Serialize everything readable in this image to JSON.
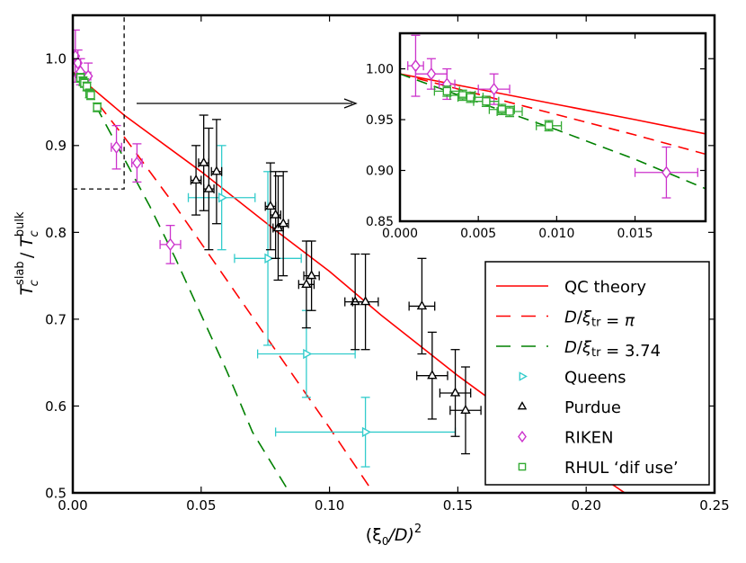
{
  "chart_data": [
    {
      "type": "line",
      "id": "main",
      "xlabel_main": "(ξ",
      "xlabel_sub": "0",
      "xlabel_rest": "/D)",
      "xlabel_sup": "2",
      "ylabel_T": "T",
      "ylabel_sub": "c",
      "ylabel_sup_num": "slab",
      "ylabel_sup_den": "bulk",
      "xlim": [
        0.0,
        0.25
      ],
      "ylim": [
        0.5,
        1.05
      ],
      "xticks": [
        0.0,
        0.05,
        0.1,
        0.15,
        0.2,
        0.25
      ],
      "xtick_labels": [
        "0.00",
        "0.05",
        "0.10",
        "0.15",
        "0.20",
        "0.25"
      ],
      "yticks": [
        0.5,
        0.6,
        0.7,
        0.8,
        0.9,
        1.0
      ],
      "ytick_labels": [
        "0.5",
        "0.6",
        "0.7",
        "0.8",
        "0.9",
        "1.0"
      ],
      "zoom_box": {
        "x": [
          0.0,
          0.02
        ],
        "y": [
          0.85,
          1.05
        ]
      },
      "lines": [
        {
          "name": "QC theory",
          "color": "#ff0000",
          "dash": "none",
          "x": [
            0.0,
            0.02,
            0.05,
            0.08,
            0.1,
            0.12,
            0.15,
            0.18,
            0.2,
            0.225
          ],
          "y": [
            0.985,
            0.935,
            0.87,
            0.8,
            0.755,
            0.705,
            0.635,
            0.57,
            0.53,
            0.48
          ]
        },
        {
          "name": "D/ξtr = π",
          "color": "#ff0000",
          "dash": "14,9",
          "x": [
            0.0,
            0.02,
            0.04,
            0.06,
            0.08,
            0.1,
            0.116
          ],
          "y": [
            0.985,
            0.91,
            0.83,
            0.745,
            0.66,
            0.575,
            0.505
          ]
        },
        {
          "name": "D/ξtr = 3.74",
          "color": "#008000",
          "dash": "14,9",
          "x": [
            0.0,
            0.01,
            0.02,
            0.03,
            0.04,
            0.05,
            0.06,
            0.07,
            0.0845
          ],
          "y": [
            0.985,
            0.94,
            0.885,
            0.83,
            0.77,
            0.705,
            0.64,
            0.57,
            0.5
          ]
        }
      ],
      "series": [
        {
          "name": "Queens",
          "marker": "triangle-right",
          "color": "#33cccc",
          "points": [
            {
              "x": 0.058,
              "y": 0.84,
              "xerr": 0.013,
              "yerr": 0.06
            },
            {
              "x": 0.076,
              "y": 0.77,
              "xerr": 0.013,
              "yerr": 0.1
            },
            {
              "x": 0.091,
              "y": 0.66,
              "xerr": 0.019,
              "yerr": 0.05
            },
            {
              "x": 0.114,
              "y": 0.57,
              "xerr": 0.035,
              "yerr": 0.04
            }
          ]
        },
        {
          "name": "Purdue",
          "marker": "triangle-up",
          "color": "#000000",
          "points": [
            {
              "x": 0.048,
              "y": 0.86,
              "xerr": 0.002,
              "yerr": 0.04
            },
            {
              "x": 0.051,
              "y": 0.88,
              "xerr": 0.002,
              "yerr": 0.055
            },
            {
              "x": 0.053,
              "y": 0.85,
              "xerr": 0.002,
              "yerr": 0.07
            },
            {
              "x": 0.056,
              "y": 0.87,
              "xerr": 0.002,
              "yerr": 0.06
            },
            {
              "x": 0.077,
              "y": 0.83,
              "xerr": 0.002,
              "yerr": 0.05
            },
            {
              "x": 0.079,
              "y": 0.82,
              "xerr": 0.002,
              "yerr": 0.05
            },
            {
              "x": 0.08,
              "y": 0.805,
              "xerr": 0.002,
              "yerr": 0.06
            },
            {
              "x": 0.082,
              "y": 0.81,
              "xerr": 0.002,
              "yerr": 0.06
            },
            {
              "x": 0.091,
              "y": 0.74,
              "xerr": 0.003,
              "yerr": 0.05
            },
            {
              "x": 0.093,
              "y": 0.75,
              "xerr": 0.003,
              "yerr": 0.04
            },
            {
              "x": 0.11,
              "y": 0.72,
              "xerr": 0.004,
              "yerr": 0.055
            },
            {
              "x": 0.114,
              "y": 0.72,
              "xerr": 0.005,
              "yerr": 0.055
            },
            {
              "x": 0.136,
              "y": 0.715,
              "xerr": 0.005,
              "yerr": 0.055
            },
            {
              "x": 0.14,
              "y": 0.635,
              "xerr": 0.006,
              "yerr": 0.05
            },
            {
              "x": 0.149,
              "y": 0.615,
              "xerr": 0.006,
              "yerr": 0.05
            },
            {
              "x": 0.153,
              "y": 0.595,
              "xerr": 0.006,
              "yerr": 0.05
            }
          ]
        },
        {
          "name": "RIKEN",
          "marker": "diamond",
          "color": "#cc33cc",
          "points": [
            {
              "x": 0.001,
              "y": 1.003,
              "xerr": 0.0005,
              "yerr": 0.03
            },
            {
              "x": 0.002,
              "y": 0.995,
              "xerr": 0.001,
              "yerr": 0.015
            },
            {
              "x": 0.003,
              "y": 0.985,
              "xerr": 0.0005,
              "yerr": 0.015
            },
            {
              "x": 0.006,
              "y": 0.98,
              "xerr": 0.001,
              "yerr": 0.015
            },
            {
              "x": 0.017,
              "y": 0.898,
              "xerr": 0.002,
              "yerr": 0.025
            },
            {
              "x": 0.025,
              "y": 0.88,
              "xerr": 0.002,
              "yerr": 0.022
            },
            {
              "x": 0.038,
              "y": 0.786,
              "xerr": 0.004,
              "yerr": 0.022
            }
          ]
        },
        {
          "name": "RHUL ‘dif use’",
          "marker": "square",
          "color": "#33aa33",
          "points": [
            {
              "x": 0.003,
              "y": 0.978,
              "xerr": 0.0008,
              "yerr": 0.005
            },
            {
              "x": 0.004,
              "y": 0.974,
              "xerr": 0.0008,
              "yerr": 0.005
            },
            {
              "x": 0.0045,
              "y": 0.972,
              "xerr": 0.0008,
              "yerr": 0.005
            },
            {
              "x": 0.0055,
              "y": 0.968,
              "xerr": 0.0008,
              "yerr": 0.005
            },
            {
              "x": 0.0065,
              "y": 0.96,
              "xerr": 0.0008,
              "yerr": 0.005
            },
            {
              "x": 0.007,
              "y": 0.958,
              "xerr": 0.0008,
              "yerr": 0.005
            },
            {
              "x": 0.0095,
              "y": 0.944,
              "xerr": 0.0008,
              "yerr": 0.005
            }
          ]
        }
      ],
      "legend": {
        "placement": "lower-right",
        "entries": [
          {
            "kind": "line",
            "ref": 0,
            "parts": [
              {
                "t": "QC theory"
              }
            ]
          },
          {
            "kind": "line",
            "ref": 1,
            "parts": [
              {
                "t": "D",
                "i": true
              },
              {
                "t": "/"
              },
              {
                "t": "ξ",
                "i": true
              },
              {
                "t": "tr",
                "sub": true
              },
              {
                "t": " = "
              },
              {
                "t": "π",
                "i": true
              }
            ]
          },
          {
            "kind": "line",
            "ref": 2,
            "parts": [
              {
                "t": "D",
                "i": true
              },
              {
                "t": "/"
              },
              {
                "t": "ξ",
                "i": true
              },
              {
                "t": "tr",
                "sub": true
              },
              {
                "t": " = 3.74"
              }
            ]
          },
          {
            "kind": "marker",
            "ref": 0,
            "parts": [
              {
                "t": "Queens"
              }
            ]
          },
          {
            "kind": "marker",
            "ref": 1,
            "parts": [
              {
                "t": "Purdue"
              }
            ]
          },
          {
            "kind": "marker",
            "ref": 2,
            "parts": [
              {
                "t": "RIKEN"
              }
            ]
          },
          {
            "kind": "marker",
            "ref": 3,
            "parts": [
              {
                "t": "RHUL ‘dif use’"
              }
            ]
          }
        ]
      }
    },
    {
      "type": "line",
      "id": "inset",
      "xlim": [
        0.0,
        0.0195
      ],
      "ylim": [
        0.85,
        1.035
      ],
      "xticks": [
        0.0,
        0.005,
        0.01,
        0.015
      ],
      "xtick_labels": [
        "0.000",
        "0.005",
        "0.010",
        "0.015"
      ],
      "yticks": [
        0.85,
        0.9,
        0.95,
        1.0
      ],
      "ytick_labels": [
        "0.85",
        "0.90",
        "0.95",
        "1.00"
      ],
      "lines": [
        {
          "name": "QC theory",
          "color": "#ff0000",
          "dash": "none",
          "x": [
            0.0,
            0.005,
            0.01,
            0.015,
            0.0195
          ],
          "y": [
            0.995,
            0.98,
            0.965,
            0.95,
            0.936
          ]
        },
        {
          "name": "D/ξtr = π",
          "color": "#ff0000",
          "dash": "12,8",
          "x": [
            0.0,
            0.005,
            0.01,
            0.015,
            0.0195
          ],
          "y": [
            0.995,
            0.975,
            0.955,
            0.935,
            0.916
          ]
        },
        {
          "name": "D/ξtr = 3.74",
          "color": "#008000",
          "dash": "12,8",
          "x": [
            0.0,
            0.005,
            0.01,
            0.015,
            0.0195
          ],
          "y": [
            0.995,
            0.967,
            0.94,
            0.911,
            0.882
          ]
        }
      ]
    }
  ]
}
